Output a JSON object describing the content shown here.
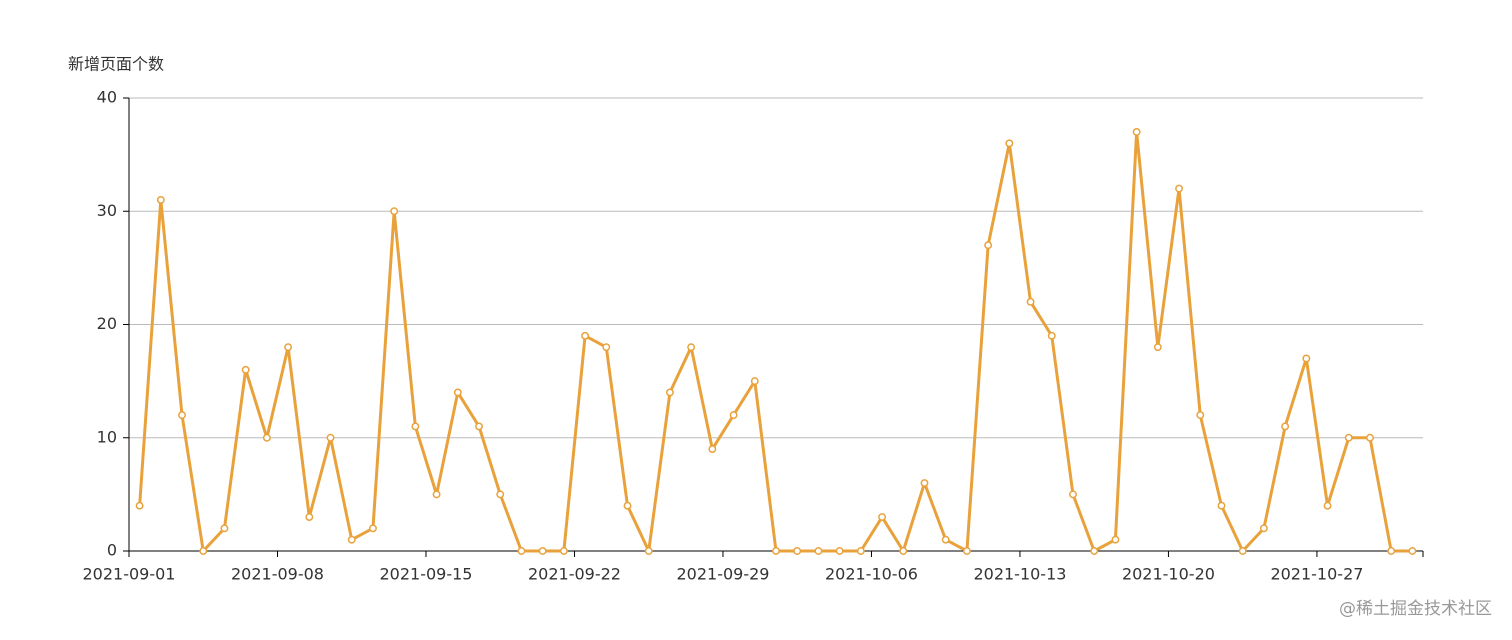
{
  "chart_data": {
    "type": "line",
    "y_label": "新增页面个数",
    "watermark": "@稀土掘金技术社区",
    "x": [
      "2021-09-01",
      "2021-09-02",
      "2021-09-03",
      "2021-09-04",
      "2021-09-05",
      "2021-09-06",
      "2021-09-07",
      "2021-09-08",
      "2021-09-09",
      "2021-09-10",
      "2021-09-11",
      "2021-09-12",
      "2021-09-13",
      "2021-09-14",
      "2021-09-15",
      "2021-09-16",
      "2021-09-17",
      "2021-09-18",
      "2021-09-19",
      "2021-09-20",
      "2021-09-21",
      "2021-09-22",
      "2021-09-23",
      "2021-09-24",
      "2021-09-25",
      "2021-09-26",
      "2021-09-27",
      "2021-09-28",
      "2021-09-29",
      "2021-09-30",
      "2021-10-01",
      "2021-10-02",
      "2021-10-03",
      "2021-10-04",
      "2021-10-05",
      "2021-10-06",
      "2021-10-07",
      "2021-10-08",
      "2021-10-09",
      "2021-10-10",
      "2021-10-11",
      "2021-10-12",
      "2021-10-13",
      "2021-10-14",
      "2021-10-15",
      "2021-10-16",
      "2021-10-17",
      "2021-10-18",
      "2021-10-19",
      "2021-10-20",
      "2021-10-21",
      "2021-10-22",
      "2021-10-23",
      "2021-10-24",
      "2021-10-25",
      "2021-10-26",
      "2021-10-27",
      "2021-10-28",
      "2021-10-29",
      "2021-10-30",
      "2021-10-31"
    ],
    "values": [
      4,
      31,
      12,
      0,
      2,
      16,
      10,
      18,
      3,
      10,
      1,
      2,
      30,
      11,
      5,
      14,
      11,
      5,
      0,
      0,
      0,
      19,
      18,
      4,
      0,
      14,
      18,
      9,
      12,
      15,
      0,
      0,
      0,
      0,
      0,
      3,
      0,
      6,
      1,
      0,
      27,
      36,
      22,
      19,
      5,
      0,
      1,
      37,
      18,
      32,
      12,
      4,
      0,
      2,
      11,
      17,
      4,
      10,
      10,
      0,
      0
    ],
    "color": "#e9a23b",
    "xlim": [
      "2021-09-01",
      "2021-11-01"
    ],
    "xticks": [
      "2021-09-01",
      "2021-09-08",
      "2021-09-15",
      "2021-09-22",
      "2021-09-29",
      "2021-10-06",
      "2021-10-13",
      "2021-10-20",
      "2021-10-27"
    ],
    "ylim": [
      0,
      40
    ],
    "yticks": [
      0,
      10,
      20,
      30,
      40
    ],
    "grid": true
  }
}
